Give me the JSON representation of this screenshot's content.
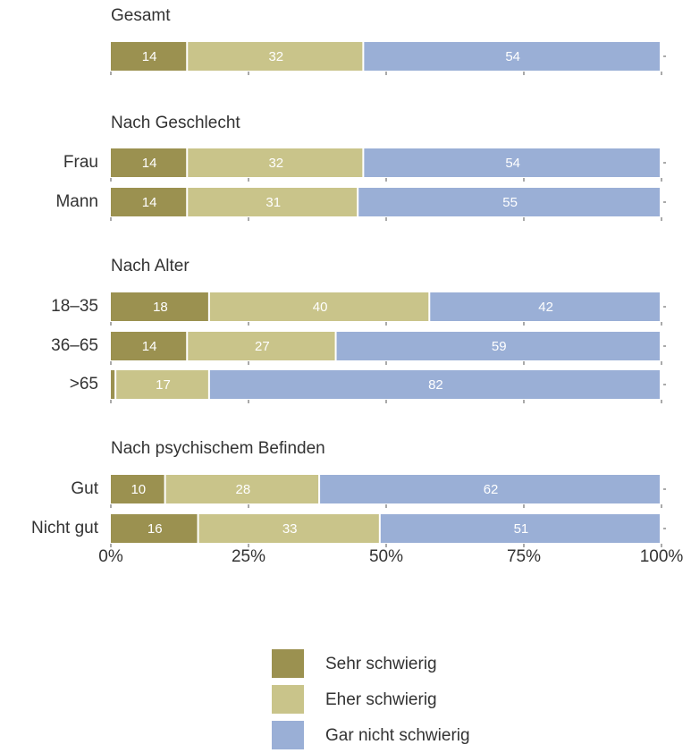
{
  "chart_data": {
    "type": "bar",
    "orientation": "horizontal",
    "stacked": true,
    "xlim": [
      0,
      100
    ],
    "x_ticks": [
      "0%",
      "25%",
      "50%",
      "75%",
      "100%"
    ],
    "groups": [
      {
        "title": "Gesamt",
        "rows": [
          {
            "label": "",
            "values": [
              14,
              32,
              54
            ]
          }
        ]
      },
      {
        "title": "Nach Geschlecht",
        "rows": [
          {
            "label": "Frau",
            "values": [
              14,
              32,
              54
            ]
          },
          {
            "label": "Mann",
            "values": [
              14,
              31,
              55
            ]
          }
        ]
      },
      {
        "title": "Nach Alter",
        "rows": [
          {
            "label": "18–35",
            "values": [
              18,
              40,
              42
            ]
          },
          {
            "label": "36–65",
            "values": [
              14,
              27,
              59
            ]
          },
          {
            "label": ">65",
            "values": [
              1,
              17,
              82
            ]
          }
        ]
      },
      {
        "title": "Nach psychischem Befinden",
        "rows": [
          {
            "label": "Gut",
            "values": [
              10,
              28,
              62
            ]
          },
          {
            "label": "Nicht gut",
            "values": [
              16,
              33,
              51
            ]
          }
        ]
      }
    ],
    "series": [
      {
        "name": "Sehr schwierig",
        "color": "#9b9150"
      },
      {
        "name": "Eher schwierig",
        "color": "#c9c48a"
      },
      {
        "name": "Gar nicht schwierig",
        "color": "#9aafd6"
      }
    ],
    "legend_position": "bottom"
  }
}
